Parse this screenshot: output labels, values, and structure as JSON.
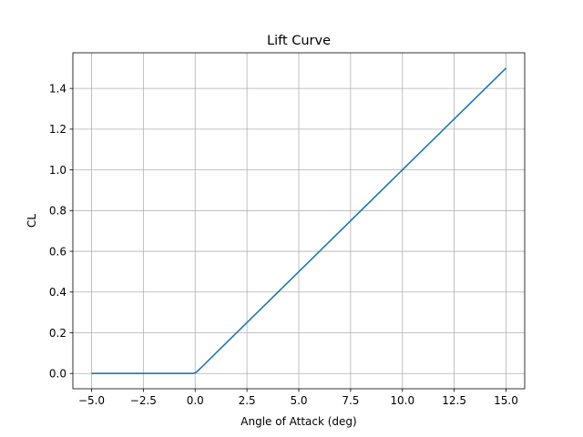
{
  "chart_data": {
    "type": "line",
    "title": "Lift Curve",
    "xlabel": "Angle of Attack (deg)",
    "ylabel": "CL",
    "xlim": [
      -5.9,
      15.9
    ],
    "ylim": [
      -0.075,
      1.575
    ],
    "grid": true,
    "x_ticks": [
      -5,
      -2.5,
      0,
      2.5,
      5,
      7.5,
      10,
      12.5,
      15
    ],
    "x_tick_labels": [
      "−5.0",
      "−2.5",
      "0.0",
      "2.5",
      "5.0",
      "7.5",
      "10.0",
      "12.5",
      "15.0"
    ],
    "y_ticks": [
      0,
      0.2,
      0.4,
      0.6,
      0.8,
      1.0,
      1.2,
      1.4
    ],
    "y_tick_labels": [
      "0.0",
      "0.2",
      "0.4",
      "0.6",
      "0.8",
      "1.0",
      "1.2",
      "1.4"
    ],
    "series": [
      {
        "color": "#1f77b4",
        "x": [
          -5,
          -2.5,
          -0.5,
          -0.1,
          0,
          0.1,
          0.2,
          0.3,
          0.5,
          1,
          2.5,
          5,
          7.5,
          10,
          12.5,
          15
        ],
        "y": [
          0,
          0,
          0,
          0,
          0.003,
          0.01,
          0.02,
          0.03,
          0.05,
          0.1,
          0.25,
          0.5,
          0.75,
          1.0,
          1.25,
          1.5
        ]
      }
    ]
  }
}
